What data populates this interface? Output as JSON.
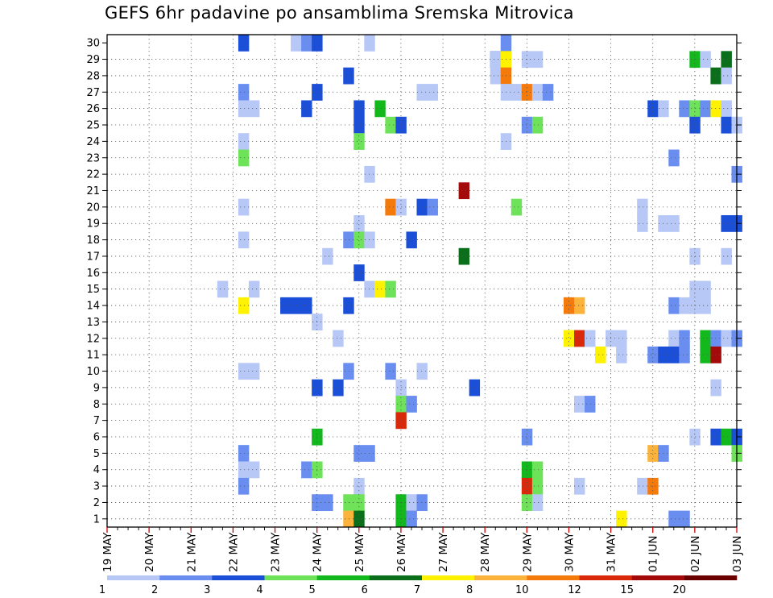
{
  "chart_data": {
    "type": "heatmap",
    "title": "GEFS 6hr padavine po ansamblima Sremska Mitrovica",
    "x_tick_labels": [
      "19 MAY",
      "20 MAY",
      "21 MAY",
      "22 MAY",
      "23 MAY",
      "24 MAY",
      "25 MAY",
      "26 MAY",
      "27 MAY",
      "28 MAY",
      "29 MAY",
      "30 MAY",
      "31 MAY",
      "01 JUN",
      "02 JUN",
      "03 JUN"
    ],
    "x_range": [
      "19 MAY 00Z",
      "03 JUN 00Z"
    ],
    "y_tick_labels": [
      1,
      2,
      3,
      4,
      5,
      6,
      7,
      8,
      9,
      10,
      11,
      12,
      13,
      14,
      15,
      16,
      17,
      18,
      19,
      20,
      21,
      22,
      23,
      24,
      25,
      26,
      27,
      28,
      29,
      30
    ],
    "y_range": [
      0,
      30
    ],
    "grid": true,
    "colorbar": {
      "labels": [
        1,
        2,
        3,
        4,
        5,
        6,
        7,
        8,
        10,
        12,
        15,
        20
      ],
      "colors": [
        "#b7c8f7",
        "#6a8ef0",
        "#1c4fd8",
        "#6ee35a",
        "#13b81c",
        "#0b6e1b",
        "#fff200",
        "#fbb33c",
        "#f57a0c",
        "#d9290a",
        "#a50a0a",
        "#6b0000"
      ]
    },
    "cells": [
      {
        "t": "22 MAY 06Z",
        "m": 30,
        "c": 2
      },
      {
        "t": "23 MAY 12Z",
        "m": 30,
        "c": 0
      },
      {
        "t": "23 MAY 18Z",
        "m": 30,
        "c": 1
      },
      {
        "t": "24 MAY 00Z",
        "m": 30,
        "c": 2
      },
      {
        "t": "25 MAY 06Z",
        "m": 30,
        "c": 0
      },
      {
        "t": "28 MAY 12Z",
        "m": 30,
        "c": 1
      },
      {
        "t": "28 MAY 06Z",
        "m": 29,
        "c": 2
      },
      {
        "t": "28 MAY 06Z",
        "m": 29,
        "c": 0
      },
      {
        "t": "29 MAY 00Z",
        "m": 29,
        "c": 0
      },
      {
        "t": "29 MAY 06Z",
        "m": 29,
        "c": 0
      },
      {
        "t": "28 MAY 12Z",
        "m": 29,
        "c": 6
      },
      {
        "t": "02 JUN 00Z",
        "m": 29,
        "c": 4
      },
      {
        "t": "02 JUN 06Z",
        "m": 29,
        "c": 0
      },
      {
        "t": "02 JUN 18Z",
        "m": 29,
        "c": 0
      },
      {
        "t": "02 JUN 18Z",
        "m": 29,
        "c": 5
      },
      {
        "t": "24 MAY 18Z",
        "m": 28,
        "c": 2
      },
      {
        "t": "28 MAY 06Z",
        "m": 28,
        "c": 0
      },
      {
        "t": "28 MAY 12Z",
        "m": 28,
        "c": 8
      },
      {
        "t": "02 JUN 12Z",
        "m": 28,
        "c": 5
      },
      {
        "t": "02 JUN 18Z",
        "m": 28,
        "c": 0
      },
      {
        "t": "22 MAY 06Z",
        "m": 27,
        "c": 1
      },
      {
        "t": "24 MAY 00Z",
        "m": 27,
        "c": 2
      },
      {
        "t": "26 MAY 12Z",
        "m": 27,
        "c": 0
      },
      {
        "t": "26 MAY 18Z",
        "m": 27,
        "c": 0
      },
      {
        "t": "28 MAY 12Z",
        "m": 27,
        "c": 0
      },
      {
        "t": "28 MAY 18Z",
        "m": 27,
        "c": 0
      },
      {
        "t": "29 MAY 00Z",
        "m": 27,
        "c": 8
      },
      {
        "t": "29 MAY 06Z",
        "m": 27,
        "c": 0
      },
      {
        "t": "29 MAY 12Z",
        "m": 27,
        "c": 1
      },
      {
        "t": "22 MAY 06Z",
        "m": 26,
        "c": 0
      },
      {
        "t": "22 MAY 12Z",
        "m": 26,
        "c": 0
      },
      {
        "t": "23 MAY 18Z",
        "m": 26,
        "c": 2
      },
      {
        "t": "25 MAY 00Z",
        "m": 26,
        "c": 2
      },
      {
        "t": "25 MAY 12Z",
        "m": 26,
        "c": 4
      },
      {
        "t": "01 JUN 00Z",
        "m": 26,
        "c": 2
      },
      {
        "t": "01 JUN 06Z",
        "m": 26,
        "c": 0
      },
      {
        "t": "01 JUN 18Z",
        "m": 26,
        "c": 1
      },
      {
        "t": "02 JUN 00Z",
        "m": 26,
        "c": 3
      },
      {
        "t": "02 JUN 06Z",
        "m": 26,
        "c": 1
      },
      {
        "t": "02 JUN 12Z",
        "m": 26,
        "c": 6
      },
      {
        "t": "02 JUN 18Z",
        "m": 26,
        "c": 0
      },
      {
        "t": "25 MAY 00Z",
        "m": 25,
        "c": 2
      },
      {
        "t": "25 MAY 18Z",
        "m": 25,
        "c": 3
      },
      {
        "t": "26 MAY 00Z",
        "m": 25,
        "c": 2
      },
      {
        "t": "29 MAY 00Z",
        "m": 25,
        "c": 1
      },
      {
        "t": "29 MAY 06Z",
        "m": 25,
        "c": 3
      },
      {
        "t": "02 JUN 00Z",
        "m": 25,
        "c": 2
      },
      {
        "t": "02 JUN 18Z",
        "m": 25,
        "c": 2
      },
      {
        "t": "03 JUN 00Z",
        "m": 25,
        "c": 0
      },
      {
        "t": "22 MAY 06Z",
        "m": 24,
        "c": 0
      },
      {
        "t": "25 MAY 00Z",
        "m": 24,
        "c": 3
      },
      {
        "t": "28 MAY 12Z",
        "m": 24,
        "c": 0
      },
      {
        "t": "22 MAY 06Z",
        "m": 23,
        "c": 3
      },
      {
        "t": "01 JUN 12Z",
        "m": 23,
        "c": 1
      },
      {
        "t": "25 MAY 06Z",
        "m": 22,
        "c": 0
      },
      {
        "t": "03 JUN 00Z",
        "m": 22,
        "c": 1
      },
      {
        "t": "27 MAY 12Z",
        "m": 21,
        "c": 10
      },
      {
        "t": "22 MAY 06Z",
        "m": 20,
        "c": 0
      },
      {
        "t": "25 MAY 18Z",
        "m": 20,
        "c": 8
      },
      {
        "t": "26 MAY 00Z",
        "m": 20,
        "c": 0
      },
      {
        "t": "26 MAY 12Z",
        "m": 20,
        "c": 2
      },
      {
        "t": "26 MAY 18Z",
        "m": 20,
        "c": 1
      },
      {
        "t": "28 MAY 18Z",
        "m": 20,
        "c": 3
      },
      {
        "t": "31 MAY 18Z",
        "m": 20,
        "c": 0
      },
      {
        "t": "25 MAY 00Z",
        "m": 19,
        "c": 0
      },
      {
        "t": "31 MAY 18Z",
        "m": 19,
        "c": 0
      },
      {
        "t": "01 JUN 06Z",
        "m": 19,
        "c": 0
      },
      {
        "t": "01 JUN 12Z",
        "m": 19,
        "c": 0
      },
      {
        "t": "02 JUN 18Z",
        "m": 19,
        "c": 2
      },
      {
        "t": "03 JUN 00Z",
        "m": 19,
        "c": 2
      },
      {
        "t": "22 MAY 06Z",
        "m": 18,
        "c": 0
      },
      {
        "t": "24 MAY 18Z",
        "m": 18,
        "c": 1
      },
      {
        "t": "25 MAY 00Z",
        "m": 18,
        "c": 3
      },
      {
        "t": "25 MAY 06Z",
        "m": 18,
        "c": 0
      },
      {
        "t": "26 MAY 06Z",
        "m": 18,
        "c": 2
      },
      {
        "t": "24 MAY 06Z",
        "m": 17,
        "c": 0
      },
      {
        "t": "27 MAY 12Z",
        "m": 17,
        "c": 5
      },
      {
        "t": "02 JUN 00Z",
        "m": 17,
        "c": 0
      },
      {
        "t": "02 JUN 18Z",
        "m": 17,
        "c": 0
      },
      {
        "t": "25 MAY 00Z",
        "m": 16,
        "c": 2
      },
      {
        "t": "21 MAY 18Z",
        "m": 15,
        "c": 0
      },
      {
        "t": "22 MAY 12Z",
        "m": 15,
        "c": 0
      },
      {
        "t": "25 MAY 06Z",
        "m": 15,
        "c": 0
      },
      {
        "t": "25 MAY 12Z",
        "m": 15,
        "c": 6
      },
      {
        "t": "25 MAY 18Z",
        "m": 15,
        "c": 3
      },
      {
        "t": "02 JUN 00Z",
        "m": 15,
        "c": 0
      },
      {
        "t": "02 JUN 06Z",
        "m": 15,
        "c": 0
      },
      {
        "t": "22 MAY 06Z",
        "m": 14,
        "c": 6
      },
      {
        "t": "23 MAY 06Z",
        "m": 14,
        "c": 2
      },
      {
        "t": "23 MAY 12Z",
        "m": 14,
        "c": 2
      },
      {
        "t": "23 MAY 18Z",
        "m": 14,
        "c": 2
      },
      {
        "t": "24 MAY 18Z",
        "m": 14,
        "c": 2
      },
      {
        "t": "30 MAY 00Z",
        "m": 14,
        "c": 8
      },
      {
        "t": "30 MAY 06Z",
        "m": 14,
        "c": 7
      },
      {
        "t": "01 JUN 12Z",
        "m": 14,
        "c": 1
      },
      {
        "t": "01 JUN 18Z",
        "m": 14,
        "c": 0
      },
      {
        "t": "02 JUN 00Z",
        "m": 14,
        "c": 0
      },
      {
        "t": "02 JUN 06Z",
        "m": 14,
        "c": 0
      },
      {
        "t": "24 MAY 00Z",
        "m": 13,
        "c": 0
      },
      {
        "t": "24 MAY 12Z",
        "m": 12,
        "c": 0
      },
      {
        "t": "30 MAY 00Z",
        "m": 12,
        "c": 6
      },
      {
        "t": "30 MAY 06Z",
        "m": 12,
        "c": 9
      },
      {
        "t": "30 MAY 12Z",
        "m": 12,
        "c": 0
      },
      {
        "t": "31 MAY 00Z",
        "m": 12,
        "c": 0
      },
      {
        "t": "31 MAY 06Z",
        "m": 12,
        "c": 0
      },
      {
        "t": "01 JUN 12Z",
        "m": 12,
        "c": 0
      },
      {
        "t": "01 JUN 18Z",
        "m": 12,
        "c": 1
      },
      {
        "t": "02 JUN 06Z",
        "m": 12,
        "c": 4
      },
      {
        "t": "02 JUN 12Z",
        "m": 12,
        "c": 1
      },
      {
        "t": "02 JUN 18Z",
        "m": 12,
        "c": 0
      },
      {
        "t": "03 JUN 00Z",
        "m": 12,
        "c": 1
      },
      {
        "t": "30 MAY 18Z",
        "m": 11,
        "c": 6
      },
      {
        "t": "31 MAY 06Z",
        "m": 11,
        "c": 0
      },
      {
        "t": "01 JUN 00Z",
        "m": 11,
        "c": 1
      },
      {
        "t": "01 JUN 06Z",
        "m": 11,
        "c": 2
      },
      {
        "t": "01 JUN 12Z",
        "m": 11,
        "c": 2
      },
      {
        "t": "01 JUN 18Z",
        "m": 11,
        "c": 1
      },
      {
        "t": "02 JUN 06Z",
        "m": 11,
        "c": 4
      },
      {
        "t": "02 JUN 12Z",
        "m": 11,
        "c": 10
      },
      {
        "t": "22 MAY 06Z",
        "m": 10,
        "c": 0
      },
      {
        "t": "22 MAY 12Z",
        "m": 10,
        "c": 0
      },
      {
        "t": "24 MAY 18Z",
        "m": 10,
        "c": 1
      },
      {
        "t": "25 MAY 18Z",
        "m": 10,
        "c": 1
      },
      {
        "t": "26 MAY 12Z",
        "m": 10,
        "c": 0
      },
      {
        "t": "24 MAY 00Z",
        "m": 9,
        "c": 2
      },
      {
        "t": "24 MAY 12Z",
        "m": 9,
        "c": 2
      },
      {
        "t": "26 MAY 00Z",
        "m": 9,
        "c": 0
      },
      {
        "t": "27 MAY 18Z",
        "m": 9,
        "c": 2
      },
      {
        "t": "02 JUN 12Z",
        "m": 9,
        "c": 0
      },
      {
        "t": "26 MAY 00Z",
        "m": 8,
        "c": 3
      },
      {
        "t": "26 MAY 06Z",
        "m": 8,
        "c": 1
      },
      {
        "t": "30 MAY 06Z",
        "m": 8,
        "c": 0
      },
      {
        "t": "30 MAY 12Z",
        "m": 8,
        "c": 1
      },
      {
        "t": "26 MAY 00Z",
        "m": 7,
        "c": 9
      },
      {
        "t": "24 MAY 00Z",
        "m": 6,
        "c": 4
      },
      {
        "t": "29 MAY 00Z",
        "m": 6,
        "c": 1
      },
      {
        "t": "02 JUN 00Z",
        "m": 6,
        "c": 0
      },
      {
        "t": "02 JUN 12Z",
        "m": 6,
        "c": 2
      },
      {
        "t": "02 JUN 18Z",
        "m": 6,
        "c": 4
      },
      {
        "t": "03 JUN 00Z",
        "m": 6,
        "c": 2
      },
      {
        "t": "22 MAY 06Z",
        "m": 5,
        "c": 1
      },
      {
        "t": "25 MAY 00Z",
        "m": 5,
        "c": 1
      },
      {
        "t": "25 MAY 06Z",
        "m": 5,
        "c": 1
      },
      {
        "t": "01 JUN 00Z",
        "m": 5,
        "c": 7
      },
      {
        "t": "01 JUN 06Z",
        "m": 5,
        "c": 1
      },
      {
        "t": "03 JUN 00Z",
        "m": 5,
        "c": 3
      },
      {
        "t": "22 MAY 06Z",
        "m": 4,
        "c": 0
      },
      {
        "t": "22 MAY 12Z",
        "m": 4,
        "c": 0
      },
      {
        "t": "23 MAY 18Z",
        "m": 4,
        "c": 1
      },
      {
        "t": "24 MAY 00Z",
        "m": 4,
        "c": 3
      },
      {
        "t": "29 MAY 00Z",
        "m": 4,
        "c": 4
      },
      {
        "t": "29 MAY 06Z",
        "m": 4,
        "c": 3
      },
      {
        "t": "22 MAY 06Z",
        "m": 3,
        "c": 1
      },
      {
        "t": "25 MAY 00Z",
        "m": 3,
        "c": 0
      },
      {
        "t": "29 MAY 00Z",
        "m": 3,
        "c": 9
      },
      {
        "t": "29 MAY 06Z",
        "m": 3,
        "c": 3
      },
      {
        "t": "30 MAY 06Z",
        "m": 3,
        "c": 0
      },
      {
        "t": "31 MAY 18Z",
        "m": 3,
        "c": 0
      },
      {
        "t": "01 JUN 00Z",
        "m": 3,
        "c": 8
      },
      {
        "t": "24 MAY 00Z",
        "m": 2,
        "c": 1
      },
      {
        "t": "24 MAY 06Z",
        "m": 2,
        "c": 1
      },
      {
        "t": "24 MAY 18Z",
        "m": 2,
        "c": 3
      },
      {
        "t": "25 MAY 00Z",
        "m": 2,
        "c": 3
      },
      {
        "t": "26 MAY 00Z",
        "m": 2,
        "c": 4
      },
      {
        "t": "26 MAY 06Z",
        "m": 2,
        "c": 0
      },
      {
        "t": "26 MAY 12Z",
        "m": 2,
        "c": 1
      },
      {
        "t": "29 MAY 00Z",
        "m": 2,
        "c": 3
      },
      {
        "t": "29 MAY 06Z",
        "m": 2,
        "c": 0
      },
      {
        "t": "24 MAY 18Z",
        "m": 1,
        "c": 7
      },
      {
        "t": "25 MAY 00Z",
        "m": 1,
        "c": 5
      },
      {
        "t": "26 MAY 00Z",
        "m": 1,
        "c": 4
      },
      {
        "t": "26 MAY 06Z",
        "m": 1,
        "c": 1
      },
      {
        "t": "31 MAY 06Z",
        "m": 1,
        "c": 6
      },
      {
        "t": "01 JUN 12Z",
        "m": 1,
        "c": 1
      },
      {
        "t": "01 JUN 18Z",
        "m": 1,
        "c": 1
      }
    ]
  }
}
